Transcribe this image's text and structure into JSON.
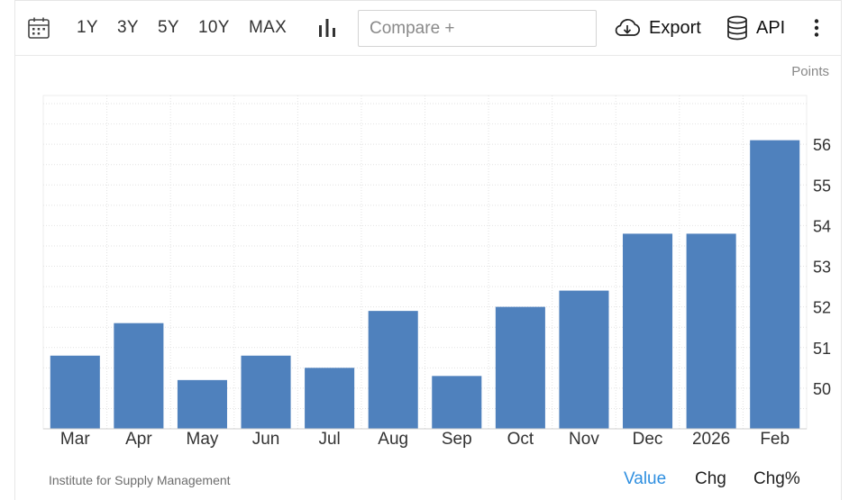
{
  "toolbar": {
    "ranges": [
      "1Y",
      "3Y",
      "5Y",
      "10Y",
      "MAX"
    ],
    "compare_placeholder": "Compare +",
    "export_label": "Export",
    "api_label": "API"
  },
  "icons": {
    "calendar": "calendar-icon",
    "chart_type": "bar-chart-icon",
    "export": "cloud-download-icon",
    "api": "database-icon",
    "more": "more-vertical-icon"
  },
  "colors": {
    "bar": "#4f81bd",
    "active_tab": "#2f8fe0",
    "grid": "#e2e2e2"
  },
  "chart_data": {
    "type": "bar",
    "categories": [
      "Mar",
      "Apr",
      "May",
      "Jun",
      "Jul",
      "Aug",
      "Sep",
      "Oct",
      "Nov",
      "Dec",
      "2026",
      "Feb"
    ],
    "values": [
      50.8,
      51.6,
      50.2,
      50.8,
      50.5,
      51.9,
      50.3,
      52.0,
      52.4,
      53.8,
      53.8,
      56.1
    ],
    "units": "Points",
    "ylim": [
      49,
      57.2
    ],
    "yticks": [
      50,
      51,
      52,
      53,
      54,
      55,
      56
    ],
    "grid": true,
    "y_axis_side": "right"
  },
  "footer": {
    "source": "Institute for Supply Management",
    "tabs": [
      "Value",
      "Chg",
      "Chg%"
    ],
    "active_tab": "Value"
  }
}
